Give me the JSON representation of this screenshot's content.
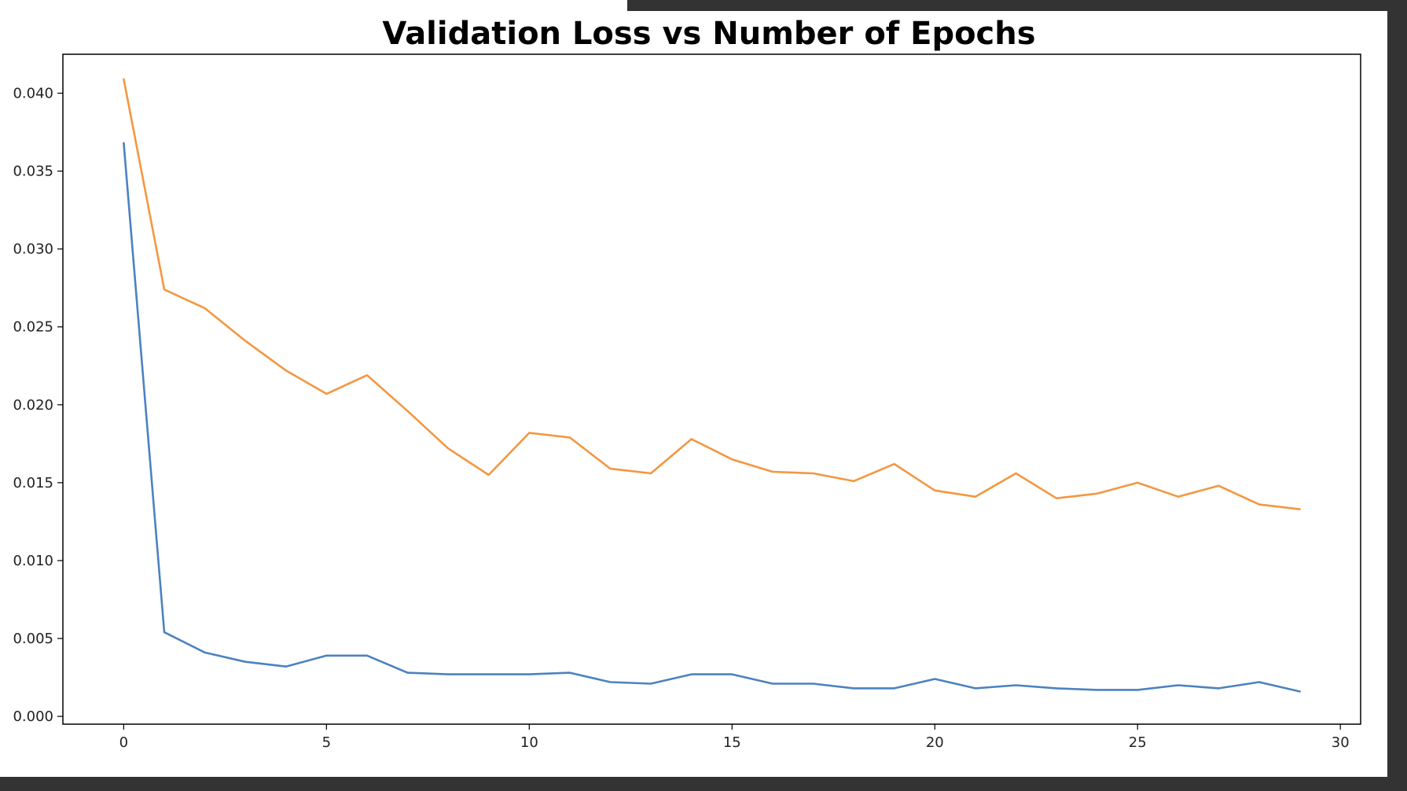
{
  "chart_data": {
    "type": "line",
    "title": "Validation Loss vs Number of Epochs",
    "xlabel": "",
    "ylabel": "",
    "xlim": [
      -1.5,
      30.5
    ],
    "ylim": [
      -0.0005,
      0.0425
    ],
    "xticks": [
      0,
      5,
      10,
      15,
      20,
      25,
      30
    ],
    "xtick_labels": [
      "0",
      "5",
      "10",
      "15",
      "20",
      "25",
      "30"
    ],
    "yticks": [
      0.0,
      0.005,
      0.01,
      0.015,
      0.02,
      0.025,
      0.03,
      0.035,
      0.04
    ],
    "ytick_labels": [
      "0.000",
      "0.005",
      "0.010",
      "0.015",
      "0.020",
      "0.025",
      "0.030",
      "0.035",
      "0.040"
    ],
    "grid": false,
    "legend": "none",
    "x": [
      0,
      1,
      2,
      3,
      4,
      5,
      6,
      7,
      8,
      9,
      10,
      11,
      12,
      13,
      14,
      15,
      16,
      17,
      18,
      19,
      20,
      21,
      22,
      23,
      24,
      25,
      26,
      27,
      28,
      29
    ],
    "series": [
      {
        "color": "#4c82c0",
        "values": [
          0.0368,
          0.0054,
          0.0041,
          0.0035,
          0.0032,
          0.0039,
          0.0039,
          0.0028,
          0.0027,
          0.0027,
          0.0027,
          0.0028,
          0.0022,
          0.0021,
          0.0027,
          0.0027,
          0.0021,
          0.0021,
          0.0018,
          0.0018,
          0.0024,
          0.0018,
          0.002,
          0.0018,
          0.0017,
          0.0017,
          0.002,
          0.0018,
          0.0022,
          0.0016
        ]
      },
      {
        "color": "#f39741",
        "values": [
          0.0409,
          0.0274,
          0.0262,
          0.0241,
          0.0222,
          0.0207,
          0.0219,
          0.0196,
          0.0172,
          0.0155,
          0.0182,
          0.0179,
          0.0159,
          0.0156,
          0.0178,
          0.0165,
          0.0157,
          0.0156,
          0.0151,
          0.0162,
          0.0145,
          0.0141,
          0.0156,
          0.014,
          0.0143,
          0.015,
          0.0141,
          0.0148,
          0.0136,
          0.0133
        ]
      }
    ]
  }
}
